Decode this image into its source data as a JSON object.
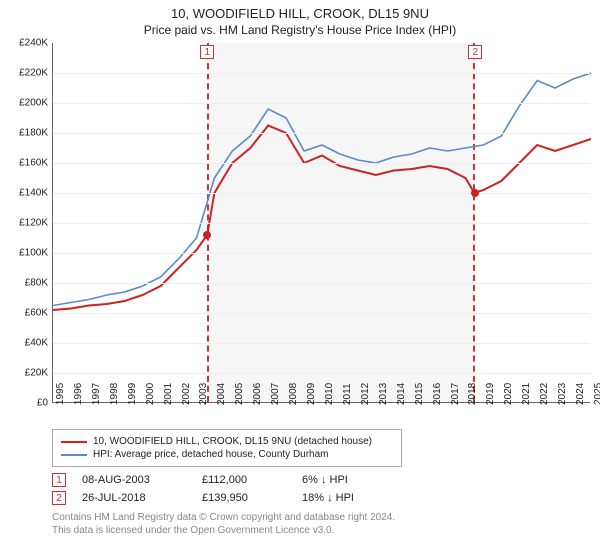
{
  "title": "10, WOODIFIELD HILL, CROOK, DL15 9NU",
  "subtitle": "Price paid vs. HM Land Registry's House Price Index (HPI)",
  "chart": {
    "type": "line",
    "background_color": "#ffffff",
    "grid_color": "#eeeeee",
    "axis_color": "#666666",
    "ylim": [
      0,
      240
    ],
    "ytick_step": 20,
    "ytick_prefix": "£",
    "ytick_suffix": "K",
    "x_years": [
      1995,
      1996,
      1997,
      1998,
      1999,
      2000,
      2001,
      2002,
      2003,
      2004,
      2005,
      2006,
      2007,
      2008,
      2009,
      2010,
      2011,
      2012,
      2013,
      2014,
      2015,
      2016,
      2017,
      2018,
      2019,
      2020,
      2021,
      2022,
      2023,
      2024,
      2025
    ],
    "shade_start_year": 2003.6,
    "shade_end_year": 2018.55,
    "shade_color": "rgba(245,245,245,0.85)",
    "shade_border_color": "#cc3333",
    "markers": [
      {
        "label": "1",
        "year": 2003.6
      },
      {
        "label": "2",
        "year": 2018.55
      }
    ],
    "series": [
      {
        "name": "property",
        "color": "#cc2222",
        "width": 2,
        "points_xy": [
          [
            1995,
            62
          ],
          [
            1996,
            63
          ],
          [
            1997,
            65
          ],
          [
            1998,
            66
          ],
          [
            1999,
            68
          ],
          [
            2000,
            72
          ],
          [
            2001,
            78
          ],
          [
            2002,
            90
          ],
          [
            2003,
            102
          ],
          [
            2003.6,
            112
          ],
          [
            2004,
            140
          ],
          [
            2005,
            160
          ],
          [
            2006,
            170
          ],
          [
            2007,
            185
          ],
          [
            2008,
            180
          ],
          [
            2009,
            160
          ],
          [
            2010,
            165
          ],
          [
            2011,
            158
          ],
          [
            2012,
            155
          ],
          [
            2013,
            152
          ],
          [
            2014,
            155
          ],
          [
            2015,
            156
          ],
          [
            2016,
            158
          ],
          [
            2017,
            156
          ],
          [
            2018,
            150
          ],
          [
            2018.5,
            140
          ],
          [
            2019,
            142
          ],
          [
            2020,
            148
          ],
          [
            2021,
            160
          ],
          [
            2022,
            172
          ],
          [
            2023,
            168
          ],
          [
            2024,
            172
          ],
          [
            2025,
            176
          ]
        ]
      },
      {
        "name": "hpi",
        "color": "#5a8bc9",
        "width": 1.6,
        "points_xy": [
          [
            1995,
            65
          ],
          [
            1996,
            67
          ],
          [
            1997,
            69
          ],
          [
            1998,
            72
          ],
          [
            1999,
            74
          ],
          [
            2000,
            78
          ],
          [
            2001,
            84
          ],
          [
            2002,
            96
          ],
          [
            2003,
            110
          ],
          [
            2004,
            150
          ],
          [
            2005,
            168
          ],
          [
            2006,
            178
          ],
          [
            2007,
            196
          ],
          [
            2008,
            190
          ],
          [
            2009,
            168
          ],
          [
            2010,
            172
          ],
          [
            2011,
            166
          ],
          [
            2012,
            162
          ],
          [
            2013,
            160
          ],
          [
            2014,
            164
          ],
          [
            2015,
            166
          ],
          [
            2016,
            170
          ],
          [
            2017,
            168
          ],
          [
            2018,
            170
          ],
          [
            2019,
            172
          ],
          [
            2020,
            178
          ],
          [
            2021,
            198
          ],
          [
            2022,
            215
          ],
          [
            2023,
            210
          ],
          [
            2024,
            216
          ],
          [
            2025,
            220
          ]
        ]
      }
    ],
    "sale_points": [
      {
        "year": 2003.6,
        "value": 112,
        "color": "#cc2222"
      },
      {
        "year": 2018.55,
        "value": 140,
        "color": "#cc2222"
      }
    ]
  },
  "legend": {
    "items": [
      {
        "color": "#cc2222",
        "label": "10, WOODIFIELD HILL, CROOK, DL15 9NU (detached house)"
      },
      {
        "color": "#5a8bc9",
        "label": "HPI: Average price, detached house, County Durham"
      }
    ]
  },
  "sales": [
    {
      "n": "1",
      "date": "08-AUG-2003",
      "price": "£112,000",
      "diff": "6% ↓ HPI"
    },
    {
      "n": "2",
      "date": "26-JUL-2018",
      "price": "£139,950",
      "diff": "18% ↓ HPI"
    }
  ],
  "footer_line1": "Contains HM Land Registry data © Crown copyright and database right 2024.",
  "footer_line2": "This data is licensed under the Open Government Licence v3.0."
}
